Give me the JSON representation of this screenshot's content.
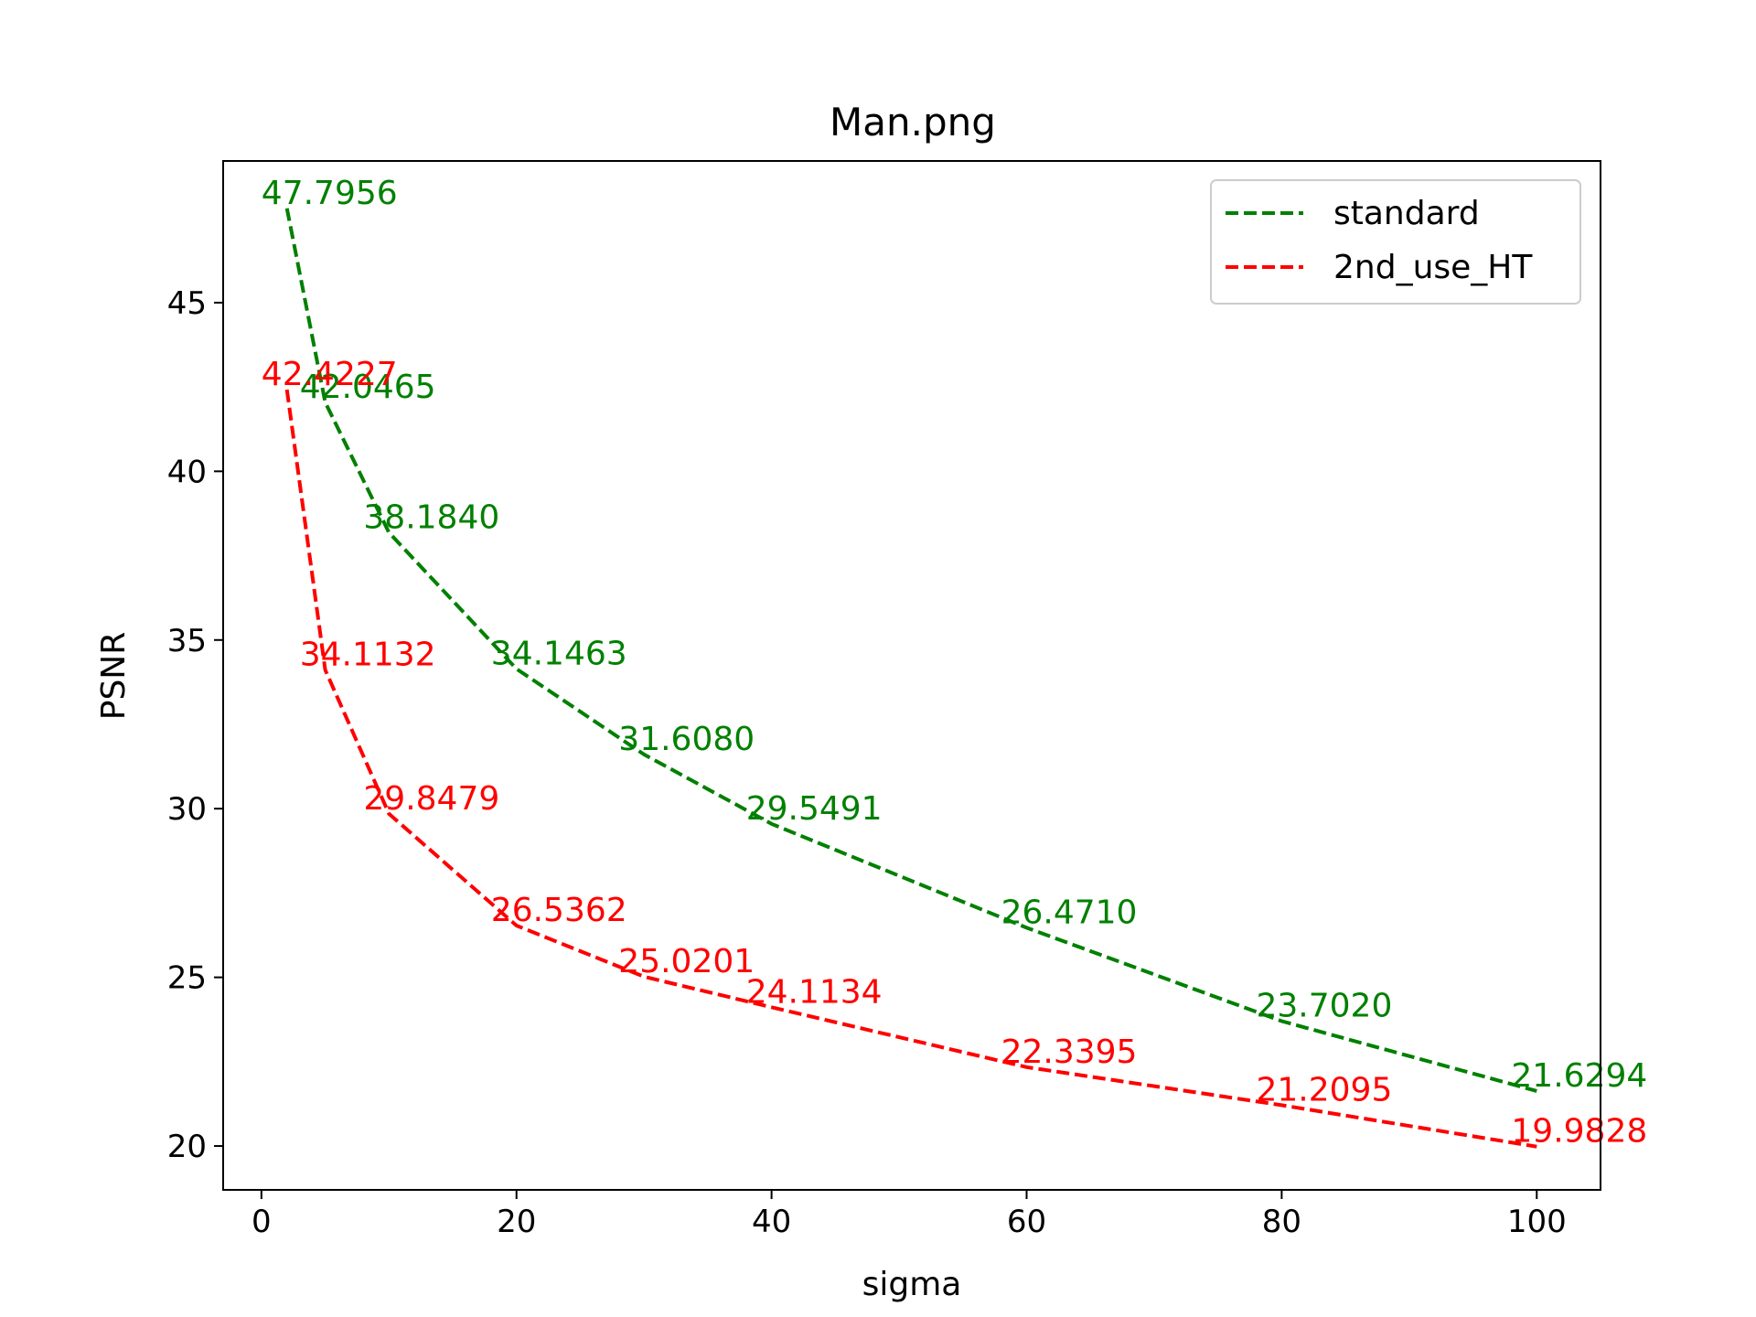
{
  "chart_data": {
    "type": "line",
    "title": "Man.png",
    "xlabel": "sigma",
    "ylabel": "PSNR",
    "xlim": [
      -3,
      105
    ],
    "ylim": [
      18.7,
      49.2
    ],
    "xticks": [
      0,
      20,
      40,
      60,
      80,
      100
    ],
    "yticks": [
      20,
      25,
      30,
      35,
      40,
      45
    ],
    "grid": false,
    "legend_position": "top-right",
    "x": [
      2,
      5,
      10,
      20,
      30,
      40,
      60,
      80,
      100
    ],
    "series": [
      {
        "name": "standard",
        "color": "#008000",
        "style": "dashed",
        "values": [
          47.7956,
          42.0465,
          38.184,
          34.1463,
          31.608,
          29.5491,
          26.471,
          23.702,
          21.6294
        ],
        "labels": [
          "47.7956",
          "42.0465",
          "38.1840",
          "34.1463",
          "31.6080",
          "29.5491",
          "26.4710",
          "23.7020",
          "21.6294"
        ]
      },
      {
        "name": "2nd_use_HT",
        "color": "#ff0000",
        "style": "dashed",
        "values": [
          42.4227,
          34.1132,
          29.8479,
          26.5362,
          25.0201,
          24.1134,
          22.3395,
          21.2095,
          19.9828
        ],
        "labels": [
          "42.4227",
          "34.1132",
          "29.8479",
          "26.5362",
          "25.0201",
          "24.1134",
          "22.3395",
          "21.2095",
          "19.9828"
        ]
      }
    ]
  }
}
